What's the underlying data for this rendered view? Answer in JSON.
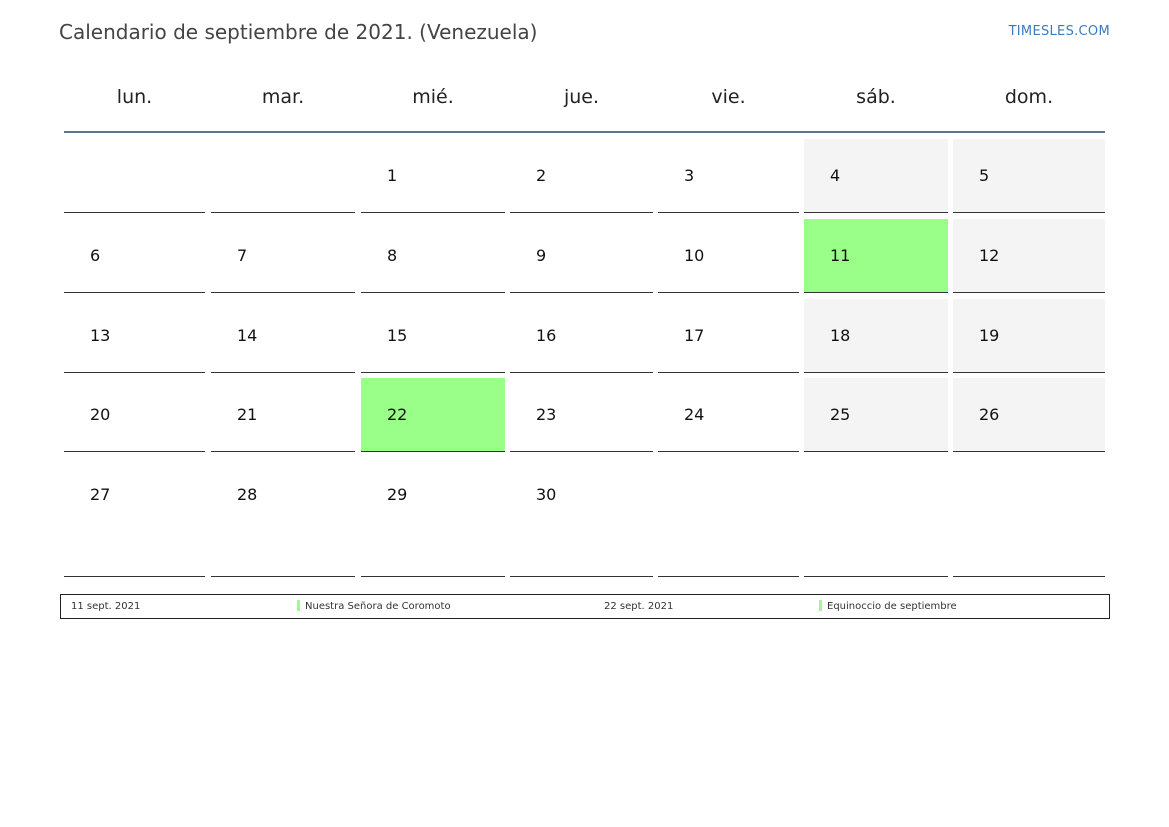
{
  "header": {
    "title": "Calendario de septiembre de 2021. (Venezuela)",
    "site": "TIMESLES.COM"
  },
  "calendar": {
    "weekdays": [
      "lun.",
      "mar.",
      "mié.",
      "jue.",
      "vie.",
      "sáb.",
      "dom."
    ],
    "weeks": [
      [
        null,
        null,
        1,
        2,
        3,
        4,
        5
      ],
      [
        6,
        7,
        8,
        9,
        10,
        11,
        12
      ],
      [
        13,
        14,
        15,
        16,
        17,
        18,
        19
      ],
      [
        20,
        21,
        22,
        23,
        24,
        25,
        26
      ],
      [
        27,
        28,
        29,
        30,
        null,
        null,
        null
      ]
    ],
    "holiday_color": "#99ff88"
  },
  "holidays": [
    {
      "date": "11 sept. 2021",
      "name": "Nuestra Señora de Coromoto"
    },
    {
      "date": "22 sept. 2021",
      "name": "Equinoccio de septiembre"
    }
  ]
}
